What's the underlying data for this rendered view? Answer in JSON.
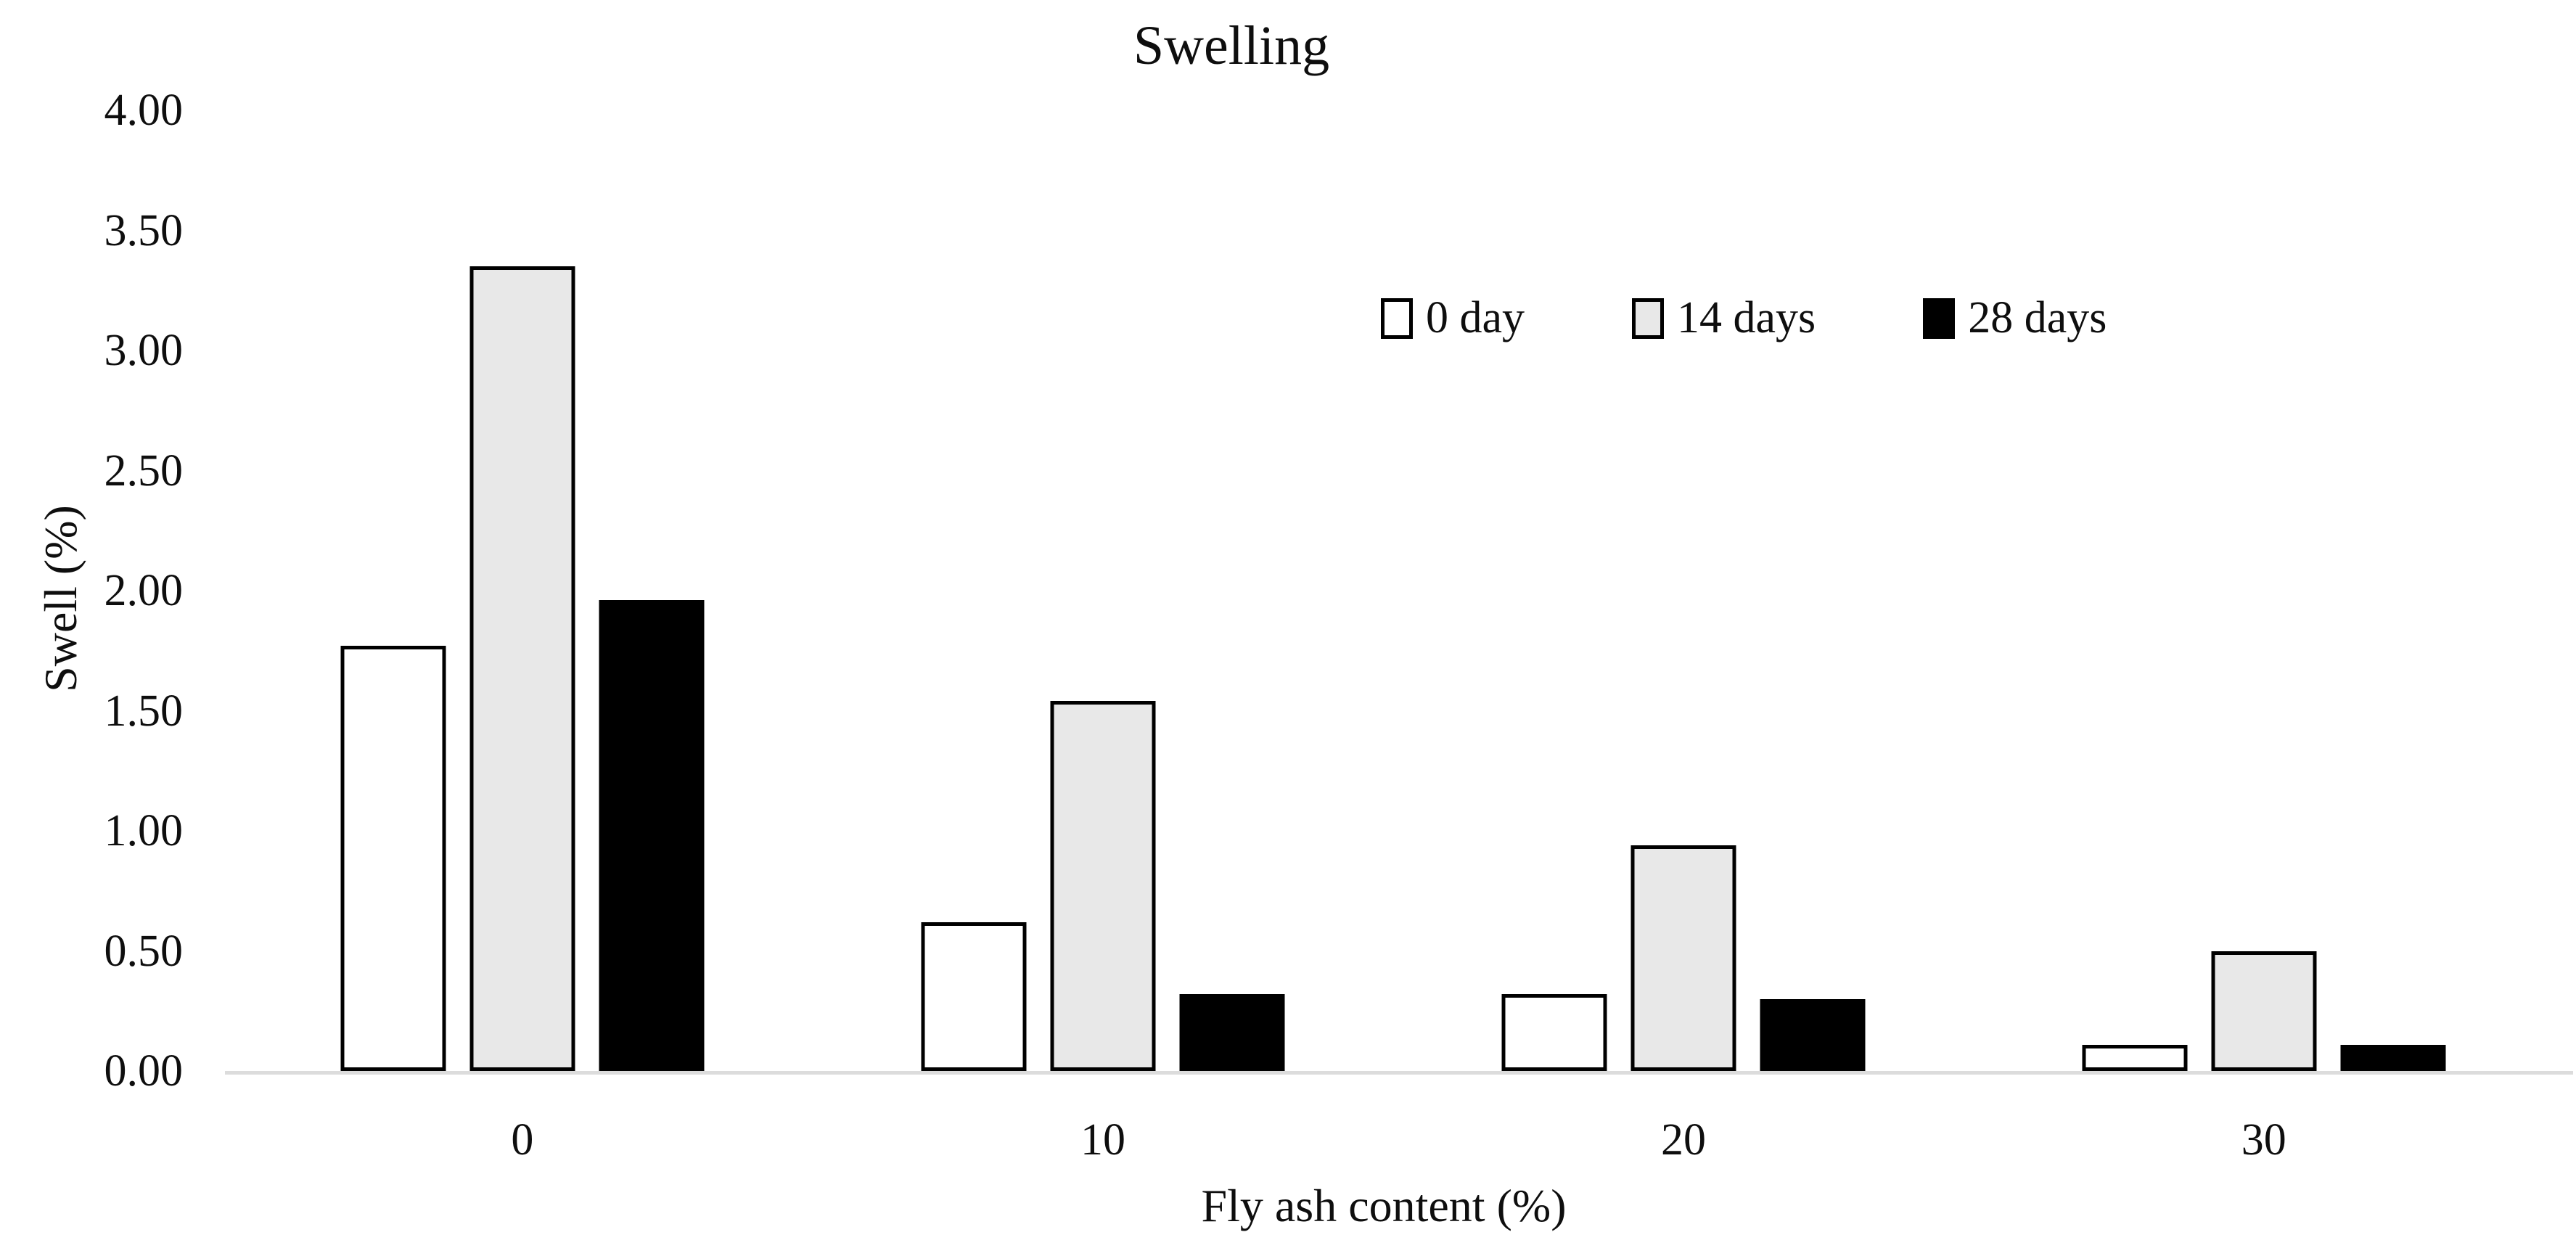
{
  "chart_data": {
    "type": "bar",
    "title": "Swelling",
    "xlabel": "Fly ash content (%)",
    "ylabel": "Swell (%)",
    "categories": [
      "0",
      "10",
      "20",
      "30"
    ],
    "series": [
      {
        "name": "0 day",
        "fill": "#ffffff",
        "border": "#000000",
        "values": [
          1.77,
          0.62,
          0.32,
          0.11
        ]
      },
      {
        "name": "14 days",
        "fill": "#e8e8e8",
        "border": "#000000",
        "values": [
          3.35,
          1.54,
          0.94,
          0.5
        ]
      },
      {
        "name": "28 days",
        "fill": "#000000",
        "border": "#000000",
        "values": [
          1.96,
          0.32,
          0.3,
          0.11
        ]
      }
    ],
    "ylim": [
      0,
      4
    ],
    "yticks": [
      "0.00",
      "0.50",
      "1.00",
      "1.50",
      "2.00",
      "2.50",
      "3.00",
      "3.50",
      "4.00"
    ],
    "grid": false,
    "legend_position": "inside-top-right",
    "group_centers_pct": [
      12.69,
      37.46,
      62.23,
      86.99
    ],
    "axis_line_color": "#dcdcdc",
    "text_color": "#0e0e0e"
  }
}
